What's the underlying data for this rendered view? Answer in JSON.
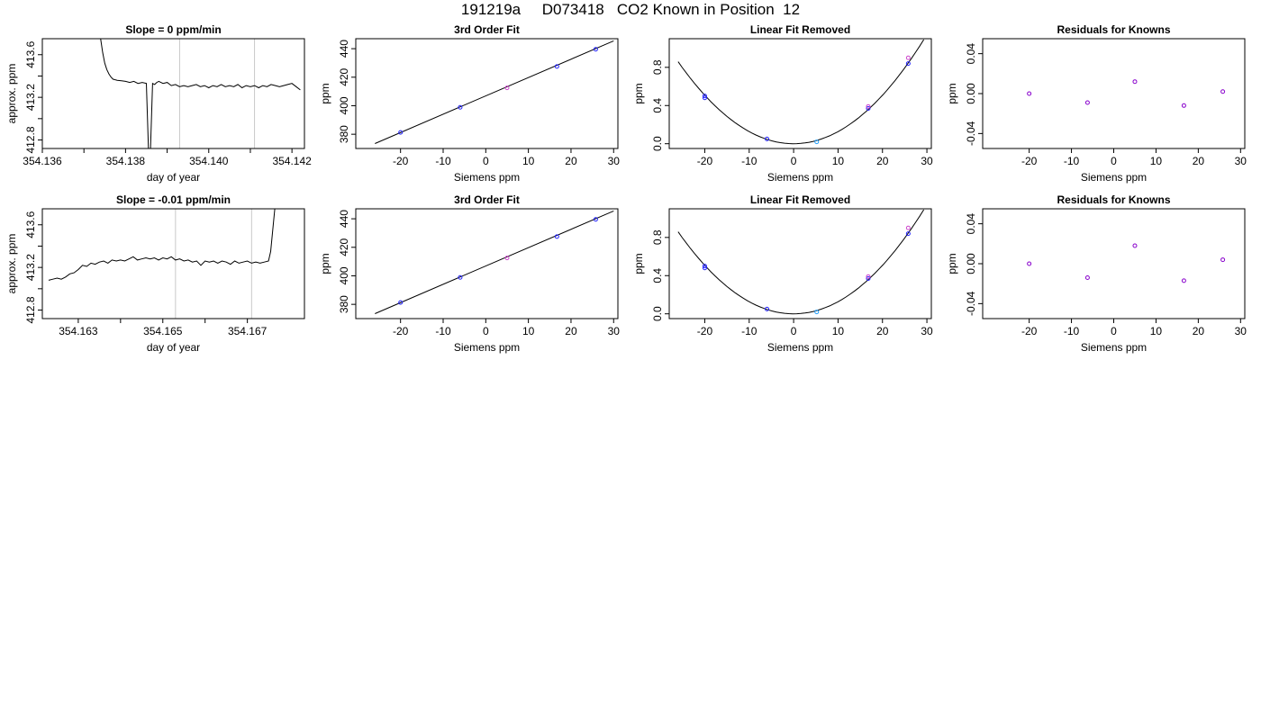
{
  "page": {
    "title": "191219a     D073418   CO2 Known in Position  12"
  },
  "colors": {
    "trace": "#000000",
    "marker_line": "#c8c8c8",
    "point_blue": "#2020ff",
    "point_magenta": "#cc44cc",
    "point_cyan": "#1f9fff",
    "point_purple": "#8800cc"
  },
  "chart_data": [
    {
      "id": "r1-trace",
      "type": "line",
      "title": "Slope =  0  ppm/min",
      "xlabel": "day of year",
      "ylabel": "approx. ppm",
      "xlim": [
        354.136,
        354.1423
      ],
      "ylim": [
        412.72,
        413.75
      ],
      "xticks": [
        354.136,
        354.137,
        354.138,
        354.139,
        354.14,
        354.141,
        354.142
      ],
      "xticklabels": [
        "354.136",
        "",
        "354.138",
        "",
        "354.140",
        "",
        "354.142"
      ],
      "yticks": [
        412.8,
        413.0,
        413.2,
        413.4,
        413.6
      ],
      "yticklabels": [
        "412.8",
        "",
        "413.2",
        "",
        "413.6"
      ],
      "vlines": [
        354.1393,
        354.1411
      ],
      "series": [
        {
          "x": [
            354.1374,
            354.13745,
            354.1375,
            354.13755,
            354.1376,
            354.13765,
            354.1377,
            354.1378,
            354.1379,
            354.138,
            354.1381,
            354.1382,
            354.1383,
            354.1384,
            354.1385,
            354.13855,
            354.1386,
            354.13865,
            354.1387,
            354.13875,
            354.1388,
            354.1389,
            354.139,
            354.1391,
            354.1392,
            354.1393,
            354.1394,
            354.1395,
            354.1396,
            354.1397,
            354.1398,
            354.1399,
            354.14,
            354.1401,
            354.1402,
            354.1403,
            354.1404,
            354.1405,
            354.1406,
            354.1407,
            354.1408,
            354.1409,
            354.141,
            354.1411,
            354.1412,
            354.1413,
            354.1414,
            354.1415,
            354.1416,
            354.1417,
            354.1418,
            354.1419,
            354.142,
            354.1421,
            354.1422
          ],
          "y": [
            413.75,
            413.62,
            413.52,
            413.46,
            413.42,
            413.39,
            413.37,
            413.36,
            413.355,
            413.35,
            413.34,
            413.35,
            413.33,
            413.34,
            413.33,
            412.72,
            412.72,
            413.33,
            413.32,
            413.34,
            413.35,
            413.33,
            413.34,
            413.31,
            413.32,
            413.3,
            413.31,
            413.3,
            413.31,
            413.32,
            413.3,
            413.31,
            413.29,
            413.31,
            413.3,
            413.32,
            413.3,
            413.31,
            413.3,
            413.32,
            413.29,
            413.31,
            413.3,
            413.31,
            413.29,
            413.31,
            413.3,
            413.32,
            413.31,
            413.3,
            413.31,
            413.32,
            413.33,
            413.3,
            413.27
          ]
        }
      ]
    },
    {
      "id": "r1-fit",
      "type": "scatter",
      "title": "3rd Order Fit",
      "xlabel": "Siemens ppm",
      "ylabel": "ppm",
      "xlim": [
        -30.5,
        31
      ],
      "ylim": [
        370,
        447
      ],
      "xticks": [
        -20,
        -10,
        0,
        10,
        20,
        30
      ],
      "xticklabels": [
        "-20",
        "-10",
        "0",
        "10",
        "20",
        "30"
      ],
      "yticks": [
        380,
        400,
        420,
        440
      ],
      "yticklabels": [
        "380",
        "400",
        "420",
        "440"
      ],
      "curve": {
        "x": [
          -26,
          30
        ],
        "y": [
          373.5,
          445.5
        ]
      },
      "series": [
        {
          "color_key": "point_blue",
          "x": [
            -20,
            -6,
            16.7,
            25.8
          ],
          "y": [
            381.3,
            398.9,
            427.5,
            439.6
          ]
        },
        {
          "color_key": "point_magenta",
          "x": [
            5
          ],
          "y": [
            412.5
          ]
        }
      ]
    },
    {
      "id": "r1-linear",
      "type": "scatter",
      "title": "Linear Fit Removed",
      "xlabel": "Siemens ppm",
      "ylabel": "ppm",
      "xlim": [
        -28,
        31
      ],
      "ylim": [
        -0.05,
        1.1
      ],
      "xticks": [
        -20,
        -10,
        0,
        10,
        20,
        30
      ],
      "xticklabels": [
        "-20",
        "-10",
        "0",
        "10",
        "20",
        "30"
      ],
      "yticks": [
        0,
        0.4,
        0.8
      ],
      "yticklabels": [
        "0.0",
        "0.4",
        "0.8"
      ],
      "curve": {
        "a": 0.00127,
        "x0": -26,
        "x1": 29.3
      },
      "series": [
        {
          "color_key": "point_blue",
          "x": [
            -20,
            -20,
            -6,
            16.8,
            25.8
          ],
          "y": [
            0.48,
            0.5,
            0.05,
            0.37,
            0.84
          ]
        },
        {
          "color_key": "point_magenta",
          "x": [
            16.8,
            25.8
          ],
          "y": [
            0.39,
            0.9
          ]
        },
        {
          "color_key": "point_cyan",
          "x": [
            5.2
          ],
          "y": [
            0.02
          ]
        }
      ]
    },
    {
      "id": "r1-resid",
      "type": "scatter",
      "title": "Residuals for Knowns",
      "xlabel": "Siemens ppm",
      "ylabel": "ppm",
      "xlim": [
        -31,
        31
      ],
      "ylim": [
        -0.055,
        0.055
      ],
      "xticks": [
        -20,
        -10,
        0,
        10,
        20,
        30
      ],
      "xticklabels": [
        "-20",
        "-10",
        "0",
        "10",
        "20",
        "30"
      ],
      "yticks": [
        -0.04,
        0,
        0.04
      ],
      "yticklabels": [
        "-0.04",
        "0.00",
        "0.04"
      ],
      "series": [
        {
          "color_key": "point_purple",
          "x": [
            -20,
            -6.2,
            5,
            16.6,
            25.8
          ],
          "y": [
            0.0,
            -0.009,
            0.012,
            -0.012,
            0.002
          ]
        }
      ]
    },
    {
      "id": "r2-trace",
      "type": "line",
      "title": "Slope =  -0.01  ppm/min",
      "xlabel": "day of year",
      "ylabel": "approx. ppm",
      "xlim": [
        354.16215,
        354.16835
      ],
      "ylim": [
        412.72,
        413.75
      ],
      "xticks": [
        354.163,
        354.164,
        354.165,
        354.166,
        354.167
      ],
      "xticklabels": [
        "354.163",
        "",
        "354.165",
        "",
        "354.167"
      ],
      "yticks": [
        412.8,
        413.0,
        413.2,
        413.4,
        413.6
      ],
      "yticklabels": [
        "412.8",
        "",
        "413.2",
        "",
        "413.6"
      ],
      "vlines": [
        354.1653,
        354.1671
      ],
      "series": [
        {
          "x": [
            354.1623,
            354.1624,
            354.1625,
            354.1626,
            354.1627,
            354.1628,
            354.1629,
            354.163,
            354.1631,
            354.1632,
            354.1633,
            354.1634,
            354.1635,
            354.1636,
            354.1637,
            354.1638,
            354.1639,
            354.164,
            354.1641,
            354.1642,
            354.1643,
            354.1644,
            354.1645,
            354.1646,
            354.1647,
            354.1648,
            354.1649,
            354.165,
            354.1651,
            354.1652,
            354.1653,
            354.1654,
            354.1655,
            354.1656,
            354.1657,
            354.1658,
            354.1659,
            354.166,
            354.1661,
            354.1662,
            354.1663,
            354.1664,
            354.1665,
            354.1666,
            354.1667,
            354.1668,
            354.1669,
            354.167,
            354.1671,
            354.1672,
            354.1673,
            354.1674,
            354.1675,
            354.16755,
            354.1676,
            354.16765
          ],
          "y": [
            413.08,
            413.09,
            413.1,
            413.09,
            413.11,
            413.14,
            413.15,
            413.18,
            413.22,
            413.21,
            413.24,
            413.23,
            413.25,
            413.26,
            413.24,
            413.27,
            413.26,
            413.27,
            413.26,
            413.28,
            413.3,
            413.27,
            413.28,
            413.29,
            413.28,
            413.29,
            413.27,
            413.29,
            413.28,
            413.3,
            413.27,
            413.28,
            413.26,
            413.27,
            413.25,
            413.26,
            413.22,
            413.26,
            413.25,
            413.26,
            413.24,
            413.26,
            413.25,
            413.23,
            413.26,
            413.24,
            413.25,
            413.26,
            413.24,
            413.25,
            413.24,
            413.25,
            413.26,
            413.35,
            413.55,
            413.75
          ]
        }
      ]
    },
    {
      "id": "r2-fit",
      "type": "scatter",
      "title": "3rd Order Fit",
      "xlabel": "Siemens ppm",
      "ylabel": "ppm",
      "xlim": [
        -30.5,
        31
      ],
      "ylim": [
        370,
        447
      ],
      "xticks": [
        -20,
        -10,
        0,
        10,
        20,
        30
      ],
      "xticklabels": [
        "-20",
        "-10",
        "0",
        "10",
        "20",
        "30"
      ],
      "yticks": [
        380,
        400,
        420,
        440
      ],
      "yticklabels": [
        "380",
        "400",
        "420",
        "440"
      ],
      "curve": {
        "x": [
          -26,
          30
        ],
        "y": [
          373.5,
          445.5
        ]
      },
      "series": [
        {
          "color_key": "point_blue",
          "x": [
            -20,
            -6,
            16.7,
            25.8
          ],
          "y": [
            381.3,
            398.9,
            427.5,
            439.6
          ]
        },
        {
          "color_key": "point_magenta",
          "x": [
            5
          ],
          "y": [
            412.5
          ]
        }
      ]
    },
    {
      "id": "r2-linear",
      "type": "scatter",
      "title": "Linear Fit Removed",
      "xlabel": "Siemens ppm",
      "ylabel": "ppm",
      "xlim": [
        -28,
        31
      ],
      "ylim": [
        -0.05,
        1.1
      ],
      "xticks": [
        -20,
        -10,
        0,
        10,
        20,
        30
      ],
      "xticklabels": [
        "-20",
        "-10",
        "0",
        "10",
        "20",
        "30"
      ],
      "yticks": [
        0,
        0.4,
        0.8
      ],
      "yticklabels": [
        "0.0",
        "0.4",
        "0.8"
      ],
      "curve": {
        "a": 0.00127,
        "x0": -26,
        "x1": 29.3
      },
      "series": [
        {
          "color_key": "point_blue",
          "x": [
            -20,
            -20,
            -6,
            16.8,
            25.8
          ],
          "y": [
            0.48,
            0.5,
            0.05,
            0.37,
            0.84
          ]
        },
        {
          "color_key": "point_magenta",
          "x": [
            16.8,
            25.8
          ],
          "y": [
            0.39,
            0.9
          ]
        },
        {
          "color_key": "point_cyan",
          "x": [
            5.2
          ],
          "y": [
            0.02
          ]
        }
      ]
    },
    {
      "id": "r2-resid",
      "type": "scatter",
      "title": "Residuals for Knowns",
      "xlabel": "Siemens ppm",
      "ylabel": "ppm",
      "xlim": [
        -31,
        31
      ],
      "ylim": [
        -0.055,
        0.055
      ],
      "xticks": [
        -20,
        -10,
        0,
        10,
        20,
        30
      ],
      "xticklabels": [
        "-20",
        "-10",
        "0",
        "10",
        "20",
        "30"
      ],
      "yticks": [
        -0.04,
        0,
        0.04
      ],
      "yticklabels": [
        "-0.04",
        "0.00",
        "0.04"
      ],
      "series": [
        {
          "color_key": "point_purple",
          "x": [
            -20,
            -6.2,
            5,
            16.6,
            25.8
          ],
          "y": [
            0.0,
            -0.014,
            0.018,
            -0.017,
            0.004
          ]
        }
      ]
    }
  ]
}
